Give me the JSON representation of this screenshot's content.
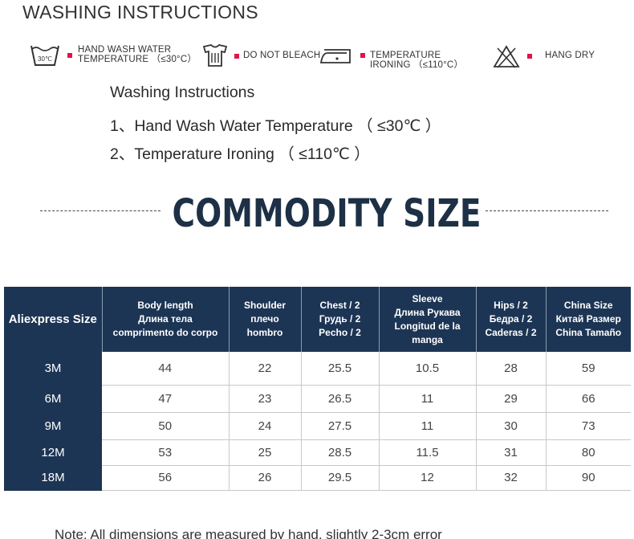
{
  "title": "WASHING INSTRUCTIONS",
  "care_icons": [
    {
      "icon": "hand-wash-30-icon",
      "badge": "30℃",
      "label_line1": "HAND WASH WATER",
      "label_line2": "TEMPERATURE （≤30°C）"
    },
    {
      "icon": "do-not-bleach-icon",
      "label_line1": "DO NOT BLEACH",
      "label_line2": ""
    },
    {
      "icon": "iron-low-icon",
      "label_line1": "TEMPERATURE",
      "label_line2": "IRONING （≤110°C）"
    },
    {
      "icon": "no-tumble-dry-icon",
      "label_line1": "HANG DRY",
      "label_line2": ""
    }
  ],
  "instructions": {
    "heading": "Washing Instructions",
    "items": [
      "1、Hand Wash Water Temperature （ ≤30℃ ）",
      "2、Temperature Ironing （ ≤110℃ ）"
    ]
  },
  "banner": {
    "text": "COMMODITY SIZE",
    "color": "#1d3046"
  },
  "accent_color": "#e0134b",
  "table": {
    "header_color": "#1d3554",
    "headers": [
      [
        "Aliexpress Size"
      ],
      [
        "Body length",
        "Длина тела",
        "comprimento do corpo"
      ],
      [
        "Shoulder",
        "плечо",
        "hombro"
      ],
      [
        "Chest / 2",
        "Грудь / 2",
        "Pecho / 2"
      ],
      [
        "Sleeve",
        "Длина Рукава",
        "Longitud de la",
        "manga"
      ],
      [
        "Hips / 2",
        "Бедра / 2",
        "Caderas / 2"
      ],
      [
        "China Size",
        "Китай Размер",
        "China Tamaño"
      ]
    ],
    "rows": [
      [
        "3M",
        "44",
        "22",
        "25.5",
        "10.5",
        "28",
        "59"
      ],
      [
        "6M",
        "47",
        "23",
        "26.5",
        "11",
        "29",
        "66"
      ],
      [
        "9M",
        "50",
        "24",
        "27.5",
        "11",
        "30",
        "73"
      ],
      [
        "12M",
        "53",
        "25",
        "28.5",
        "11.5",
        "31",
        "80"
      ],
      [
        "18M",
        "56",
        "26",
        "29.5",
        "12",
        "32",
        "90"
      ]
    ]
  },
  "note": "Note: All dimensions are measured by hand, slightly 2-3cm error"
}
